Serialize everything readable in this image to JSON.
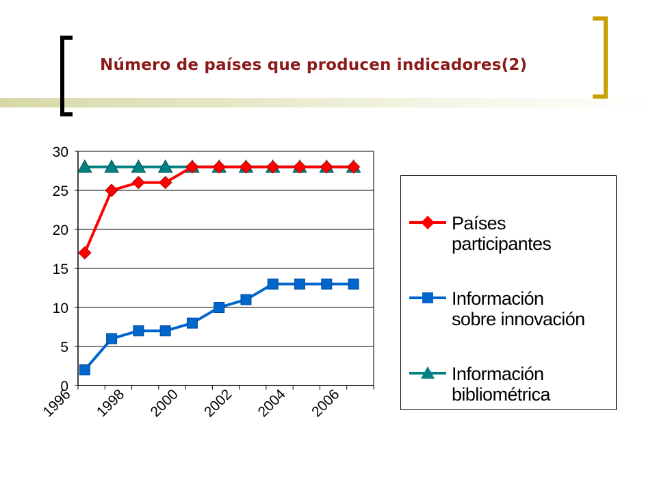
{
  "slide": {
    "title": "Número de países que producen indicadores(2)"
  },
  "colors": {
    "title": "#8b1a1a",
    "bracket_left": "#000000",
    "bracket_right": "#c8a000",
    "series_red": "#ff0000",
    "series_blue": "#0066cc",
    "series_teal": "#008080"
  },
  "chart_data": {
    "type": "line",
    "title": "",
    "xlabel": "",
    "ylabel": "",
    "x": [
      1996,
      1997,
      1998,
      1999,
      2000,
      2001,
      2002,
      2003,
      2004,
      2005,
      2006
    ],
    "x_tick_labels": [
      "1996",
      "1998",
      "2000",
      "2002",
      "2004",
      "2006"
    ],
    "y_tick_labels": [
      "0",
      "5",
      "10",
      "15",
      "20",
      "25",
      "30"
    ],
    "ylim": [
      0,
      30
    ],
    "grid": true,
    "legend_position": "right",
    "series": [
      {
        "name_lines": [
          "Países",
          "participantes"
        ],
        "marker": "diamond",
        "color": "#ff0000",
        "values": [
          17,
          25,
          26,
          26,
          28,
          28,
          28,
          28,
          28,
          28,
          28
        ]
      },
      {
        "name_lines": [
          "Información",
          "sobre innovación"
        ],
        "marker": "square",
        "color": "#0066cc",
        "values": [
          2,
          6,
          7,
          7,
          8,
          10,
          11,
          13,
          13,
          13,
          13
        ]
      },
      {
        "name_lines": [
          "Información",
          "bibliométrica"
        ],
        "marker": "triangle",
        "color": "#008080",
        "values": [
          28,
          28,
          28,
          28,
          28,
          28,
          28,
          28,
          28,
          28,
          28
        ]
      }
    ]
  }
}
